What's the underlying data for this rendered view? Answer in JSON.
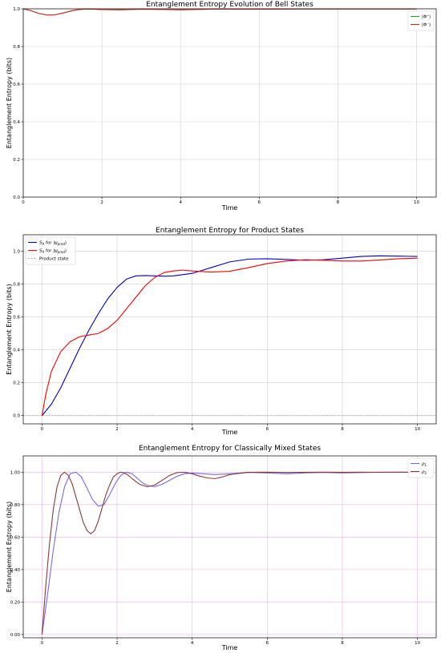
{
  "chart_data": [
    {
      "type": "line",
      "title": "Entanglement Entropy Evolution of Bell States",
      "xlabel": "Time",
      "ylabel": "Entanglement Entropy (bits)",
      "xlim": [
        0,
        10.5
      ],
      "ylim": [
        0,
        1.0
      ],
      "xticks": [
        "0",
        "2",
        "4",
        "6",
        "8",
        "10"
      ],
      "xtick_values": [
        0,
        2,
        4,
        6,
        8,
        10
      ],
      "yticks": [
        "0.0",
        "0.2",
        "0.4",
        "0.6",
        "0.8",
        "1.0"
      ],
      "ytick_values": [
        0,
        0.2,
        0.4,
        0.6,
        0.8,
        1.0
      ],
      "grid": true,
      "legend_position": "top-right",
      "series": [
        {
          "name": "|Φ⁺⟩",
          "color": "#2ca02c",
          "x": [
            0,
            0.2,
            0.4,
            0.6,
            0.8,
            1.0,
            1.2,
            1.4,
            1.6,
            1.8,
            2.0,
            2.5,
            3.0,
            3.5,
            4.0,
            4.5,
            5.0,
            5.5,
            6.0,
            7.0,
            8.0,
            9.0,
            10.0
          ],
          "y": [
            1.0,
            0.99,
            0.975,
            0.967,
            0.968,
            0.977,
            0.988,
            0.996,
            0.999,
            0.998,
            0.996,
            0.995,
            0.998,
            0.997,
            0.995,
            0.997,
            0.999,
            0.998,
            0.998,
            0.999,
            0.999,
            0.999,
            0.999
          ]
        },
        {
          "name": "|Φ⁻⟩",
          "color": "#d62728",
          "x": [
            0,
            0.2,
            0.4,
            0.6,
            0.8,
            1.0,
            1.2,
            1.4,
            1.6,
            1.8,
            2.0,
            2.5,
            3.0,
            3.5,
            4.0,
            4.5,
            5.0,
            5.5,
            6.0,
            7.0,
            8.0,
            9.0,
            10.0
          ],
          "y": [
            1.0,
            0.99,
            0.975,
            0.967,
            0.968,
            0.977,
            0.988,
            0.996,
            0.999,
            0.998,
            0.996,
            0.995,
            0.998,
            0.997,
            0.995,
            0.997,
            0.999,
            0.998,
            0.998,
            0.999,
            0.999,
            0.999,
            0.999
          ]
        }
      ]
    },
    {
      "type": "line",
      "title": "Entanglement Entropy for Product States",
      "xlabel": "Time",
      "ylabel": "Entanglement Entropy (bits)",
      "xlim": [
        -0.5,
        10.5
      ],
      "ylim": [
        -0.05,
        1.1
      ],
      "xticks": [
        "0",
        "2",
        "4",
        "6",
        "8",
        "10"
      ],
      "xtick_values": [
        0,
        2,
        4,
        6,
        8,
        10
      ],
      "yticks": [
        "0.0",
        "0.2",
        "0.4",
        "0.6",
        "0.8",
        "1.0"
      ],
      "ytick_values": [
        0,
        0.2,
        0.4,
        0.6,
        0.8,
        1.0
      ],
      "grid": true,
      "legend_position": "top-left",
      "series": [
        {
          "name": "S_A for |ψ_prod⟩",
          "label_main": "S",
          "label_sub": "A",
          "label_rest": " for |ψ",
          "label_sub2": "prod",
          "label_end": "⟩",
          "color": "#0000cc",
          "x": [
            0,
            0.25,
            0.5,
            0.75,
            1.0,
            1.25,
            1.5,
            1.75,
            2.0,
            2.25,
            2.5,
            2.75,
            3.0,
            3.25,
            3.5,
            4.0,
            4.5,
            5.0,
            5.5,
            6.0,
            6.5,
            7.0,
            7.5,
            8.0,
            8.5,
            9.0,
            9.5,
            10.0
          ],
          "y": [
            0,
            0.07,
            0.17,
            0.29,
            0.41,
            0.52,
            0.62,
            0.71,
            0.78,
            0.83,
            0.85,
            0.852,
            0.85,
            0.848,
            0.85,
            0.865,
            0.9,
            0.935,
            0.952,
            0.954,
            0.95,
            0.945,
            0.948,
            0.958,
            0.968,
            0.972,
            0.97,
            0.968
          ]
        },
        {
          "name": "S_A for |ψ_prod⟩",
          "label_main": "S",
          "label_sub": "A",
          "label_rest": " for |ψ",
          "label_sub2": "prod",
          "label_end": "⟩",
          "color": "#ff0000",
          "x": [
            0,
            0.1,
            0.25,
            0.5,
            0.75,
            1.0,
            1.25,
            1.5,
            1.75,
            2.0,
            2.25,
            2.5,
            2.75,
            3.0,
            3.25,
            3.5,
            3.75,
            4.0,
            4.5,
            5.0,
            5.5,
            6.0,
            6.5,
            7.0,
            7.5,
            8.0,
            8.5,
            9.0,
            9.5,
            10.0
          ],
          "y": [
            0,
            0.13,
            0.27,
            0.39,
            0.45,
            0.48,
            0.49,
            0.5,
            0.53,
            0.58,
            0.65,
            0.72,
            0.79,
            0.84,
            0.87,
            0.88,
            0.885,
            0.88,
            0.873,
            0.878,
            0.9,
            0.925,
            0.94,
            0.948,
            0.945,
            0.94,
            0.94,
            0.947,
            0.954,
            0.958
          ]
        },
        {
          "name": "Product state",
          "color": "#999999",
          "dashed": true,
          "x": [
            -0.5,
            10.5
          ],
          "y": [
            0,
            0
          ]
        }
      ]
    },
    {
      "type": "line",
      "title": "Entanglement Entropy for Classically Mixed States",
      "xlabel": "Time",
      "ylabel": "Entanglement Entropy (bits)",
      "xlim": [
        -0.5,
        10.5
      ],
      "ylim": [
        -0.02,
        1.1
      ],
      "xticks": [
        "0",
        "2",
        "4",
        "6",
        "8",
        "10"
      ],
      "xtick_values": [
        0,
        2,
        4,
        6,
        8,
        10
      ],
      "yticks": [
        "0.00",
        "0.20",
        "0.40",
        "0.60",
        "0.80",
        "1.00"
      ],
      "ytick_values": [
        0,
        0.2,
        0.4,
        0.6,
        0.8,
        1.0
      ],
      "grid": true,
      "grid_color": "#e8b4e8",
      "legend_position": "top-right",
      "series": [
        {
          "name": "ρ1",
          "label_main": "ρ",
          "label_sub": "1",
          "color": "#7b68ee",
          "x": [
            0,
            0.15,
            0.3,
            0.45,
            0.6,
            0.75,
            0.9,
            1.05,
            1.2,
            1.35,
            1.5,
            1.65,
            1.8,
            1.95,
            2.1,
            2.25,
            2.4,
            2.55,
            2.7,
            2.85,
            3.0,
            3.2,
            3.4,
            3.6,
            3.8,
            4.0,
            4.3,
            4.6,
            5.0,
            5.5,
            6.0,
            6.5,
            7.0,
            7.5,
            8.0,
            8.5,
            9.0,
            9.5,
            10.0
          ],
          "y": [
            0,
            0.25,
            0.52,
            0.75,
            0.91,
            0.99,
            1.0,
            0.97,
            0.9,
            0.83,
            0.79,
            0.8,
            0.86,
            0.93,
            0.98,
            1.0,
            0.99,
            0.96,
            0.93,
            0.915,
            0.91,
            0.925,
            0.95,
            0.975,
            0.99,
            0.995,
            0.99,
            0.985,
            0.99,
            0.998,
            0.995,
            0.99,
            0.995,
            0.998,
            0.995,
            0.997,
            0.999,
            0.999,
            0.999
          ]
        },
        {
          "name": "ρ2",
          "label_main": "ρ",
          "label_sub": "2",
          "color": "#8b3a3a",
          "x": [
            0,
            0.1,
            0.2,
            0.3,
            0.4,
            0.5,
            0.6,
            0.7,
            0.8,
            0.9,
            1.0,
            1.1,
            1.2,
            1.3,
            1.4,
            1.5,
            1.6,
            1.7,
            1.8,
            1.9,
            2.0,
            2.1,
            2.2,
            2.3,
            2.4,
            2.6,
            2.8,
            3.0,
            3.2,
            3.4,
            3.6,
            3.8,
            4.0,
            4.2,
            4.4,
            4.6,
            4.8,
            5.0,
            5.5,
            6.0,
            6.5,
            7.0,
            7.5,
            8.0,
            8.5,
            9.0,
            9.5,
            10.0
          ],
          "y": [
            0,
            0.3,
            0.56,
            0.77,
            0.91,
            0.98,
            1.0,
            0.98,
            0.93,
            0.85,
            0.77,
            0.69,
            0.64,
            0.62,
            0.64,
            0.7,
            0.78,
            0.86,
            0.92,
            0.97,
            0.99,
            1.0,
            0.995,
            0.98,
            0.96,
            0.925,
            0.91,
            0.92,
            0.95,
            0.98,
            0.997,
            0.999,
            0.99,
            0.975,
            0.965,
            0.96,
            0.97,
            0.985,
            0.999,
            1.0,
            0.998,
            0.999,
            1.0,
            0.999,
            1.0,
            0.999,
            1.0,
            1.0
          ]
        }
      ]
    }
  ]
}
